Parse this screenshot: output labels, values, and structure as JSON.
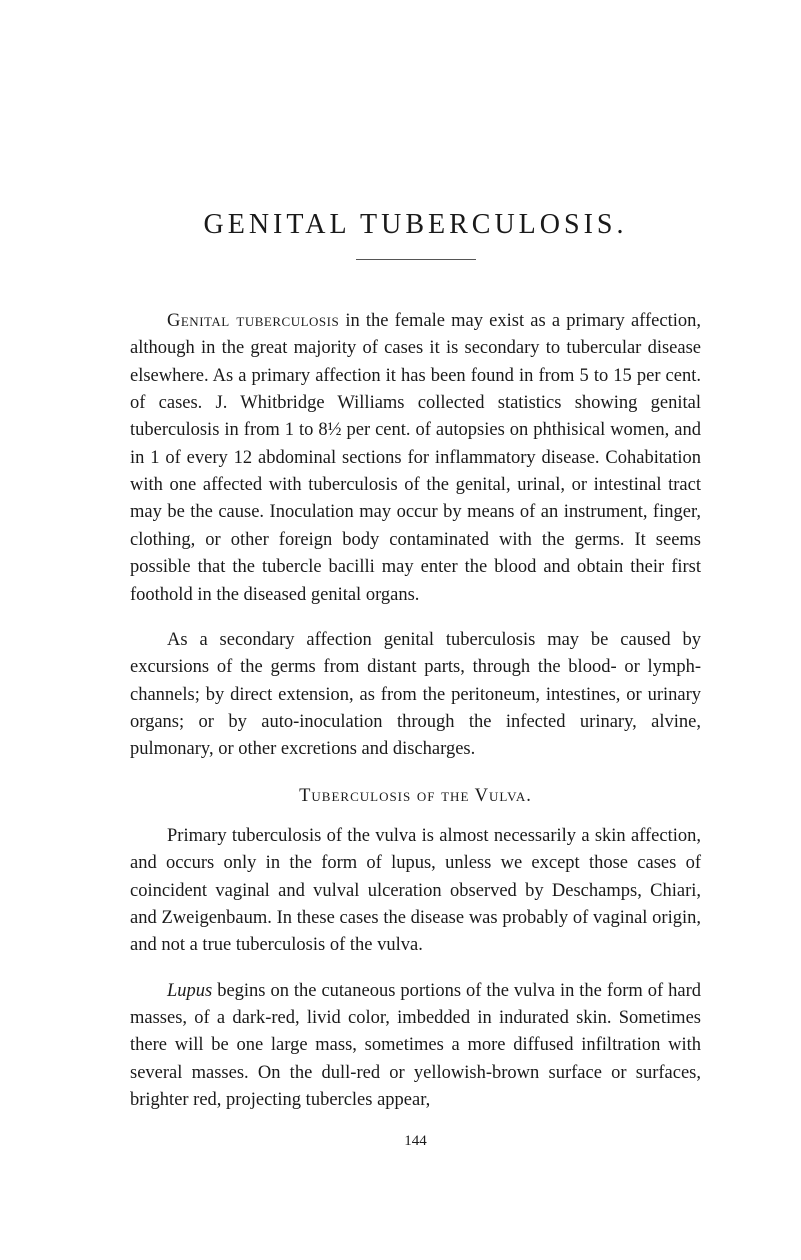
{
  "page": {
    "title": "GENITAL TUBERCULOSIS.",
    "paragraphs": {
      "p1_lead": "Genital tuberculosis",
      "p1_rest": " in the female may exist as a primary affection, although in the great majority of cases it is secondary to tubercular disease elsewhere. As a primary affection it has been found in from 5 to 15 per cent. of cases. J. Whitbridge Williams collected statistics showing genital tuberculosis in from 1 to 8½ per cent. of autopsies on phthisical women, and in 1 of every 12 abdominal sections for inflammatory disease. Cohabitation with one affected with tuberculosis of the genital, urinal, or intestinal tract may be the cause. Inoculation may occur by means of an instrument, finger, clothing, or other foreign body contaminated with the germs. It seems possible that the tubercle bacilli may enter the blood and obtain their first foothold in the diseased genital organs.",
      "p2": "As a secondary affection genital tuberculosis may be caused by excursions of the germs from distant parts, through the blood- or lymph-channels; by direct extension, as from the peritoneum, intestines, or urinary organs; or by auto-inoculation through the infected urinary, alvine, pulmonary, or other excretions and discharges.",
      "p3": "Primary tuberculosis of the vulva is almost necessarily a skin affection, and occurs only in the form of lupus, unless we except those cases of coincident vaginal and vulval ulceration observed by Deschamps, Chiari, and Zweigenbaum. In these cases the disease was probably of vaginal origin, and not a true tuberculosis of the vulva.",
      "p4_lead": "Lupus",
      "p4_rest": " begins on the cutaneous portions of the vulva in the form of hard masses, of a dark-red, livid color, imbedded in indurated skin. Sometimes there will be one large mass, sometimes a more diffused infiltration with several masses. On the dull-red or yellowish-brown surface or surfaces, brighter red, projecting tubercles appear,"
    },
    "subheading": "Tuberculosis of the Vulva.",
    "page_number": "144"
  },
  "style": {
    "background_color": "#ffffff",
    "text_color": "#1a1a1a",
    "title_fontsize": 28,
    "body_fontsize": 18.5,
    "line_height": 1.48
  }
}
